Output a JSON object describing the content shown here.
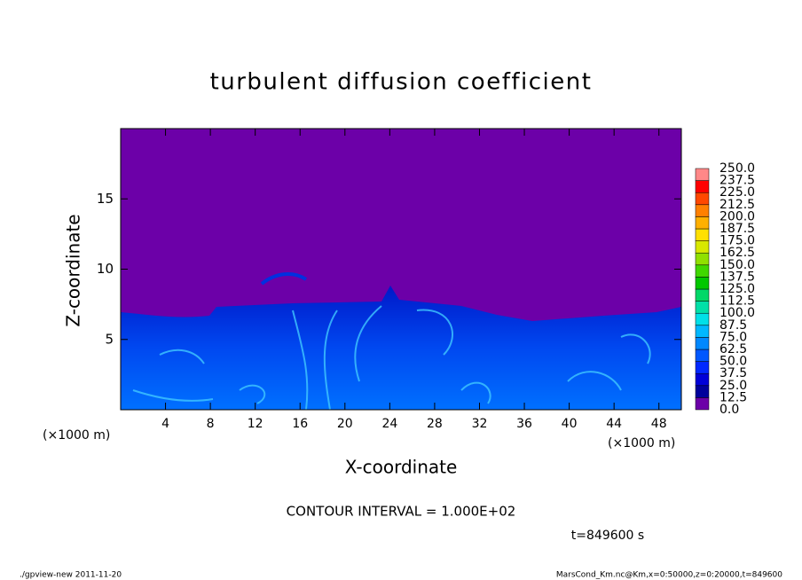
{
  "chart_data": {
    "type": "contour",
    "title": "turbulent diffusion coefficient",
    "x_label": "X-coordinate",
    "y_label": "Z-coordinate",
    "x_unit_left": "(×1000 m)",
    "x_unit_right": "(×1000 m)",
    "xlim": [
      0,
      50
    ],
    "ylim": [
      0,
      20
    ],
    "xticks": [
      4,
      8,
      12,
      16,
      20,
      24,
      28,
      32,
      36,
      40,
      44,
      48
    ],
    "yticks": [
      5,
      10,
      15
    ],
    "colorbar": {
      "levels": [
        {
          "value": 0,
          "label": "0.0"
        },
        12.5,
        {
          "value": 25,
          "label": "25.0"
        },
        37.5,
        {
          "value": 50,
          "label": "50.0"
        },
        62.5,
        {
          "value": 75,
          "label": "75.0"
        },
        87.5,
        {
          "value": 100,
          "label": "100.0"
        },
        112.5,
        {
          "value": 125,
          "label": "125.0"
        },
        137.5,
        {
          "value": 150,
          "label": "150.0"
        },
        162.5,
        {
          "value": 175,
          "label": "175.0"
        },
        187.5,
        {
          "value": 200,
          "label": "200.0"
        },
        212.5,
        {
          "value": 225,
          "label": "225.0"
        },
        237.5,
        {
          "value": 250,
          "label": "250.0"
        }
      ],
      "colors": [
        "#6c00a8",
        "#00009c",
        "#0000d8",
        "#0028ff",
        "#0058ff",
        "#0088ff",
        "#00b8ff",
        "#00e0e8",
        "#00e0a8",
        "#00d868",
        "#00c800",
        "#40d800",
        "#90e000",
        "#d8e800",
        "#ffe000",
        "#ffb000",
        "#ff8000",
        "#ff4800",
        "#ff0000",
        "#ff8888"
      ]
    },
    "contour_interval": "CONTOUR INTERVAL = 1.000E+02",
    "time": "t=849600 s",
    "footer_left": "./gpview-new  2011-11-20",
    "footer_right": "MarsCond_Km.nc@Km,x=0:50000,z=0:20000,t=849600"
  }
}
